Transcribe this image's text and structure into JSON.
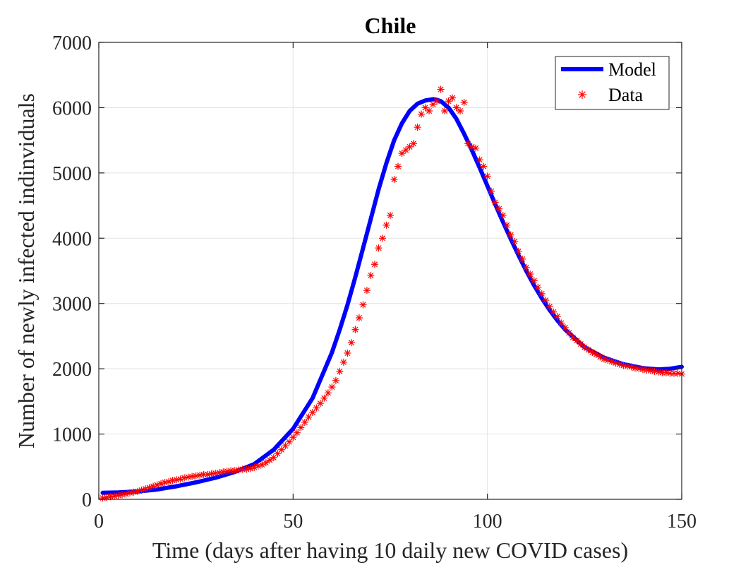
{
  "chart_data": {
    "type": "line",
    "title": "Chile",
    "xlabel": "Time (days after having 10 daily new COVID cases)",
    "ylabel": "Number of newly infected indinviduals",
    "xlim": [
      0,
      150
    ],
    "ylim": [
      0,
      7000
    ],
    "xticks": [
      0,
      50,
      100,
      150
    ],
    "yticks": [
      0,
      1000,
      2000,
      3000,
      4000,
      5000,
      6000,
      7000
    ],
    "grid": true,
    "legend_position": "top-right",
    "series": [
      {
        "name": "Model",
        "style": "line",
        "color": "#0000ff",
        "x": [
          1,
          5,
          10,
          15,
          20,
          25,
          30,
          35,
          40,
          45,
          50,
          55,
          60,
          62,
          64,
          66,
          68,
          70,
          72,
          74,
          76,
          78,
          80,
          82,
          84,
          86,
          87,
          88,
          90,
          92,
          94,
          96,
          98,
          100,
          102,
          104,
          106,
          108,
          110,
          112,
          114,
          116,
          118,
          120,
          125,
          130,
          135,
          140,
          144,
          147,
          150
        ],
        "y": [
          100,
          105,
          120,
          150,
          200,
          260,
          330,
          420,
          540,
          760,
          1080,
          1550,
          2250,
          2600,
          2980,
          3400,
          3850,
          4300,
          4750,
          5150,
          5500,
          5760,
          5950,
          6060,
          6110,
          6130,
          6120,
          6100,
          6000,
          5830,
          5600,
          5350,
          5080,
          4800,
          4520,
          4250,
          3990,
          3740,
          3500,
          3280,
          3080,
          2900,
          2740,
          2600,
          2330,
          2170,
          2070,
          2010,
          1990,
          2000,
          2030
        ]
      },
      {
        "name": "Data",
        "style": "markers",
        "color": "#ff0000",
        "x": [
          1,
          2,
          3,
          4,
          5,
          6,
          7,
          8,
          9,
          10,
          11,
          12,
          13,
          14,
          15,
          16,
          17,
          18,
          19,
          20,
          21,
          22,
          23,
          24,
          25,
          26,
          27,
          28,
          29,
          30,
          31,
          32,
          33,
          34,
          35,
          36,
          37,
          38,
          39,
          40,
          41,
          42,
          43,
          44,
          45,
          46,
          47,
          48,
          49,
          50,
          51,
          52,
          53,
          54,
          55,
          56,
          57,
          58,
          59,
          60,
          61,
          62,
          63,
          64,
          65,
          66,
          67,
          68,
          69,
          70,
          71,
          72,
          73,
          74,
          75,
          76,
          77,
          78,
          79,
          80,
          81,
          82,
          83,
          84,
          85,
          86,
          87,
          88,
          89,
          90,
          91,
          92,
          93,
          94,
          95,
          96,
          97,
          98,
          99,
          100,
          101,
          102,
          103,
          104,
          105,
          106,
          107,
          108,
          109,
          110,
          111,
          112,
          113,
          114,
          115,
          116,
          117,
          118,
          119,
          120,
          121,
          122,
          123,
          124,
          125,
          126,
          127,
          128,
          129,
          130,
          131,
          132,
          133,
          134,
          135,
          136,
          137,
          138,
          139,
          140,
          141,
          142,
          143,
          144,
          145,
          146,
          147,
          148,
          149,
          150
        ],
        "y": [
          20,
          30,
          40,
          50,
          60,
          70,
          80,
          100,
          110,
          120,
          140,
          160,
          180,
          200,
          220,
          240,
          260,
          270,
          290,
          300,
          310,
          330,
          340,
          350,
          360,
          370,
          380,
          380,
          390,
          400,
          410,
          420,
          430,
          440,
          440,
          450,
          460,
          460,
          470,
          490,
          510,
          530,
          560,
          600,
          640,
          700,
          760,
          820,
          880,
          950,
          1020,
          1100,
          1180,
          1260,
          1330,
          1400,
          1470,
          1550,
          1630,
          1720,
          1820,
          1960,
          2100,
          2240,
          2400,
          2600,
          2780,
          2980,
          3200,
          3430,
          3600,
          3850,
          4000,
          4200,
          4350,
          4900,
          5100,
          5300,
          5350,
          5400,
          5450,
          5700,
          5900,
          6000,
          5950,
          6050,
          6100,
          6280,
          5950,
          6100,
          6150,
          6000,
          5950,
          6080,
          5450,
          5400,
          5380,
          5200,
          5100,
          4950,
          4720,
          4550,
          4450,
          4350,
          4200,
          4050,
          3950,
          3800,
          3680,
          3550,
          3450,
          3350,
          3250,
          3150,
          3050,
          2950,
          2870,
          2800,
          2700,
          2630,
          2550,
          2480,
          2430,
          2380,
          2330,
          2290,
          2250,
          2220,
          2180,
          2150,
          2130,
          2110,
          2090,
          2070,
          2050,
          2040,
          2030,
          2010,
          2000,
          1990,
          1980,
          1970,
          1960,
          1950,
          1940,
          1940,
          1930,
          1930,
          1930,
          1920
        ]
      }
    ]
  }
}
